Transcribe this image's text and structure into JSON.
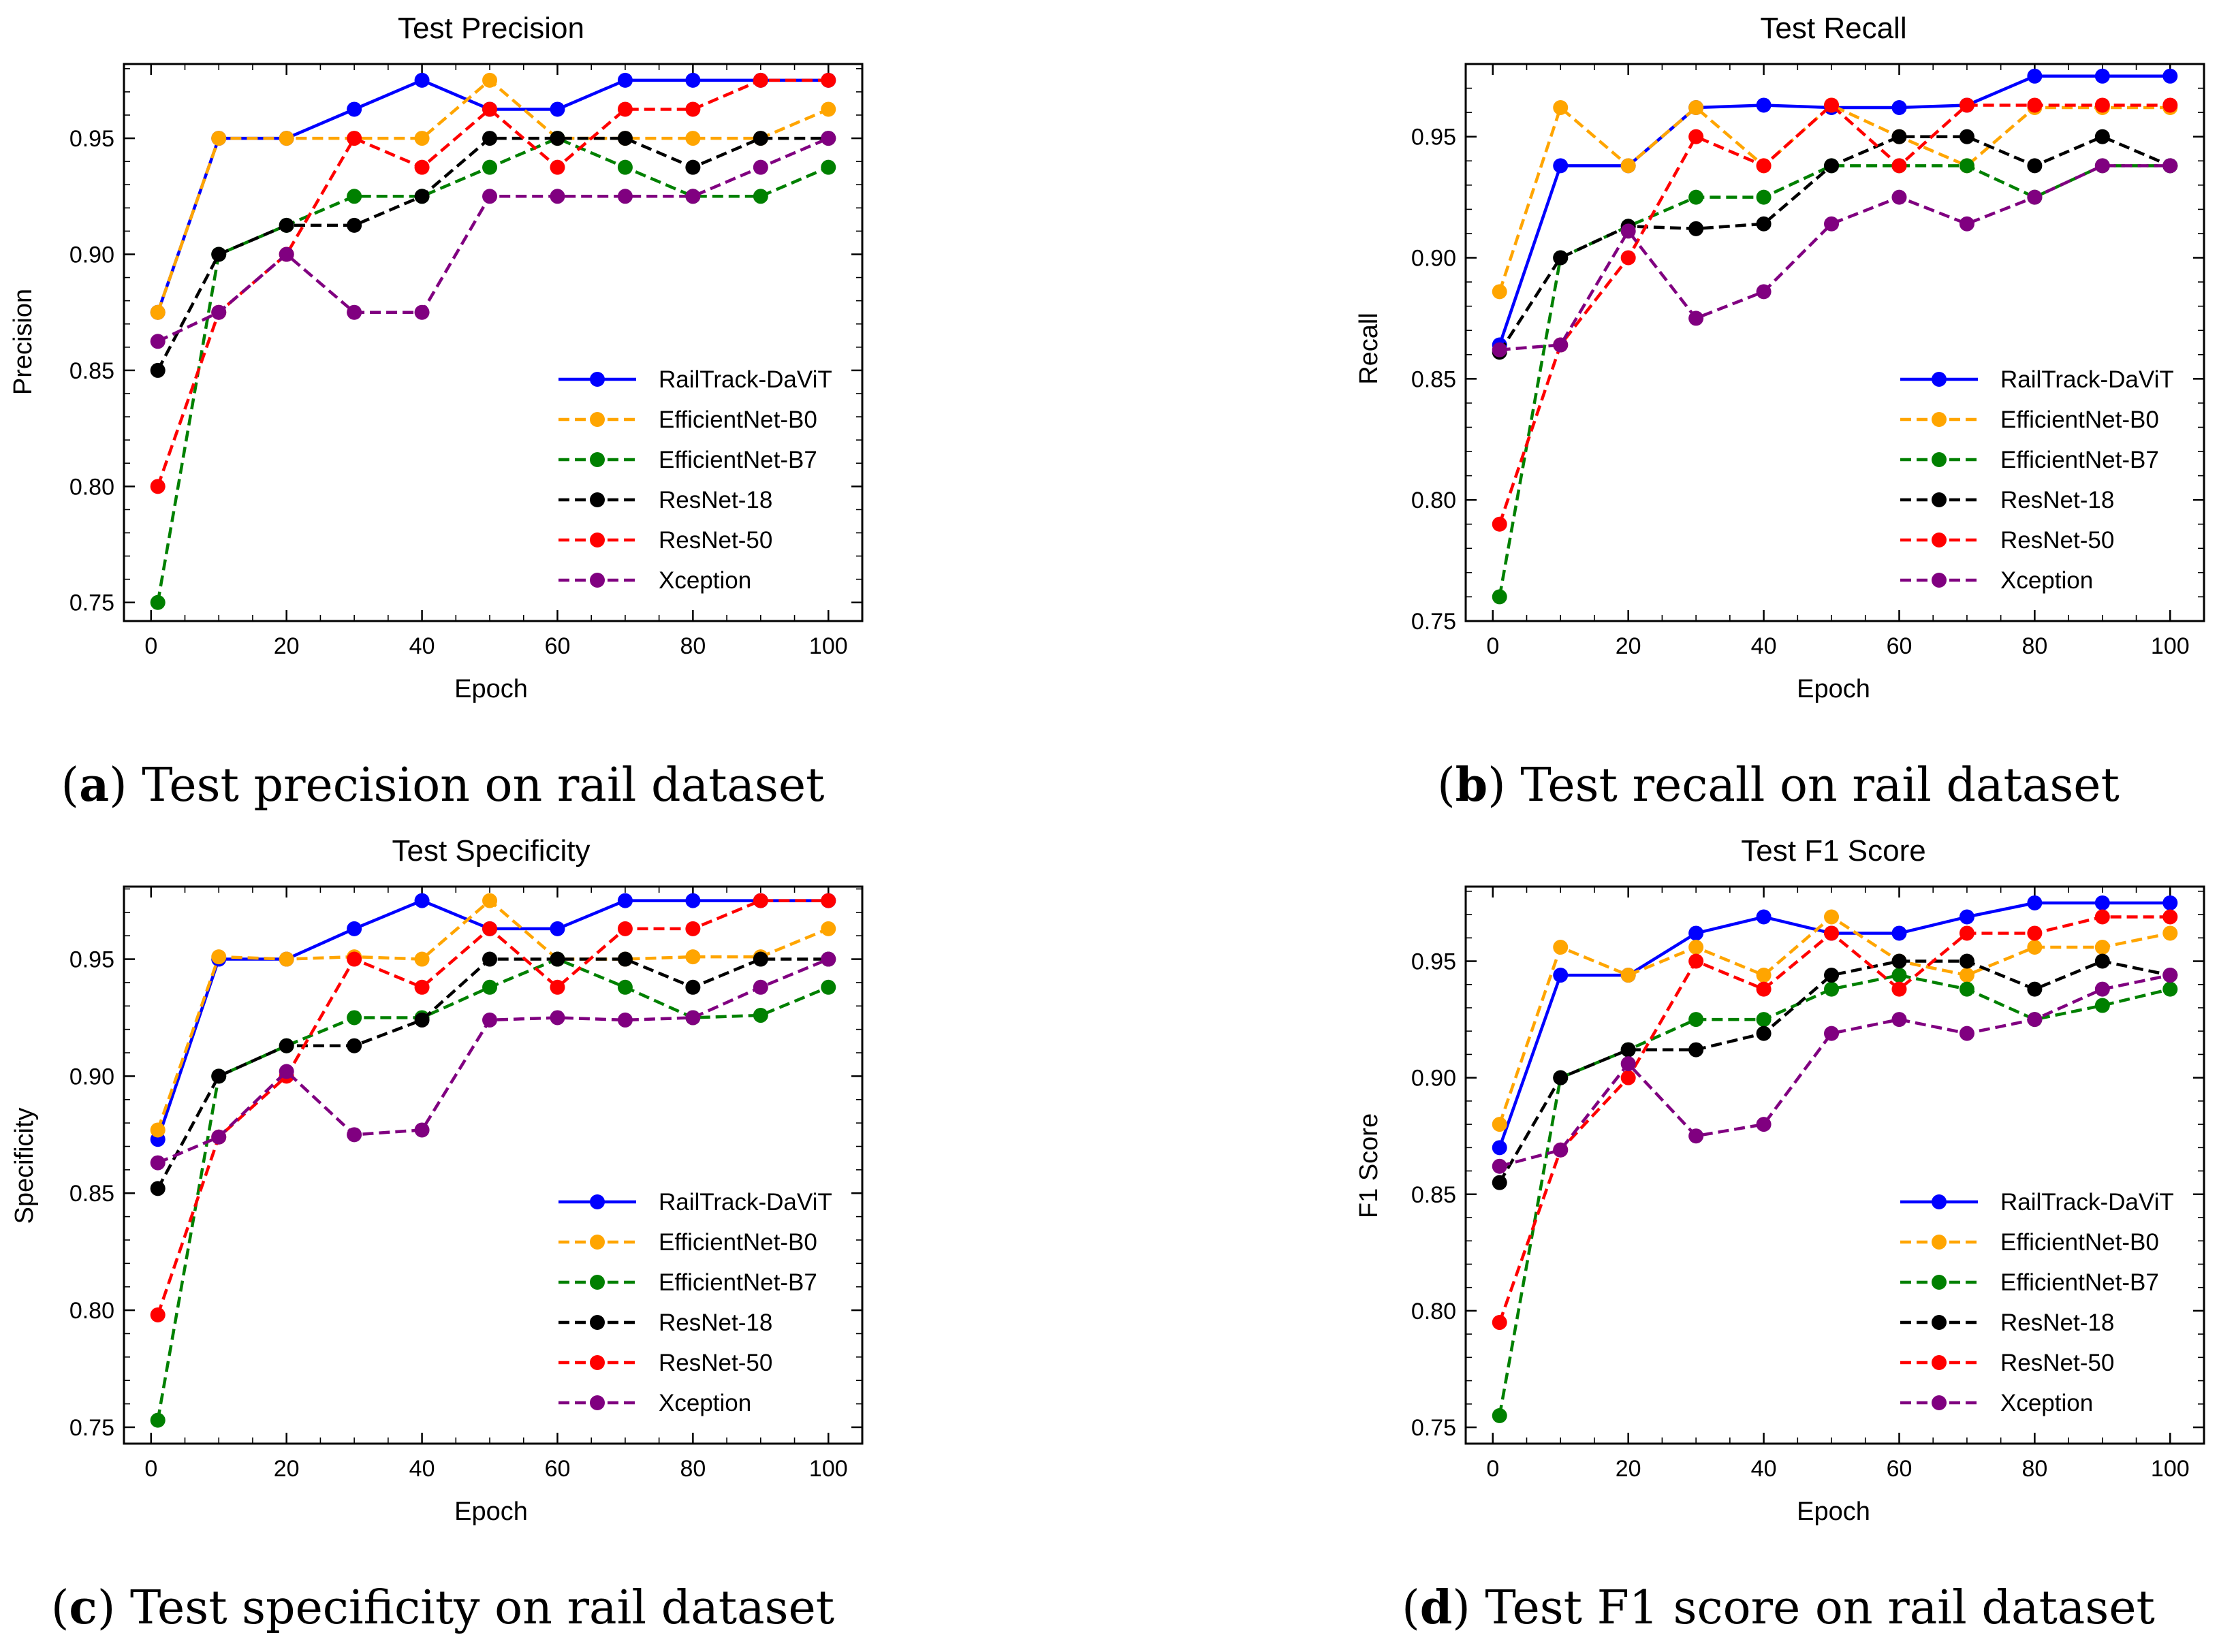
{
  "figure": {
    "captions": [
      {
        "letter": "a",
        "text": "Test precision on rail dataset"
      },
      {
        "letter": "b",
        "text": "Test recall on rail dataset"
      },
      {
        "letter": "c",
        "text": "Test specificity on rail dataset"
      },
      {
        "letter": "d",
        "text": "Test F1 score on rail dataset"
      }
    ]
  },
  "colors": {
    "RailTrack-DaViT": "#0000ff",
    "EfficientNet-B0": "#ffa500",
    "EfficientNet-B7": "#008000",
    "ResNet-18": "#000000",
    "ResNet-50": "#ff0000",
    "Xception": "#800080"
  },
  "chart_data": [
    {
      "type": "line",
      "title": "Test Precision",
      "xlabel": "Epoch",
      "ylabel": "Precision",
      "xlim": [
        -4,
        105
      ],
      "ylim": [
        0.742,
        0.982
      ],
      "xticks": [
        0,
        20,
        40,
        60,
        80,
        100
      ],
      "yticks": [
        0.75,
        0.8,
        0.85,
        0.9,
        0.95
      ],
      "x": [
        1,
        10,
        20,
        30,
        40,
        50,
        60,
        70,
        80,
        90,
        100
      ],
      "legend_position": "center-right",
      "series": [
        {
          "name": "RailTrack-DaViT",
          "style": "solid",
          "values": [
            0.875,
            0.95,
            0.95,
            0.9625,
            0.975,
            0.9625,
            0.9625,
            0.975,
            0.975,
            0.975,
            0.975
          ]
        },
        {
          "name": "EfficientNet-B0",
          "style": "dashed",
          "values": [
            0.875,
            0.95,
            0.95,
            0.95,
            0.95,
            0.975,
            0.95,
            0.95,
            0.95,
            0.95,
            0.9625
          ]
        },
        {
          "name": "EfficientNet-B7",
          "style": "dashed",
          "values": [
            0.75,
            0.9,
            0.9125,
            0.925,
            0.925,
            0.9375,
            0.95,
            0.9375,
            0.925,
            0.925,
            0.9375
          ]
        },
        {
          "name": "ResNet-18",
          "style": "dashed",
          "values": [
            0.85,
            0.9,
            0.9125,
            0.9125,
            0.925,
            0.95,
            0.95,
            0.95,
            0.9375,
            0.95,
            0.95
          ]
        },
        {
          "name": "ResNet-50",
          "style": "dashed",
          "values": [
            0.8,
            0.875,
            0.9,
            0.95,
            0.9375,
            0.9625,
            0.9375,
            0.9625,
            0.9625,
            0.975,
            0.975
          ]
        },
        {
          "name": "Xception",
          "style": "dashed",
          "values": [
            0.8625,
            0.875,
            0.9,
            0.875,
            0.875,
            0.925,
            0.925,
            0.925,
            0.925,
            0.9375,
            0.95
          ]
        }
      ]
    },
    {
      "type": "line",
      "title": "Test Recall",
      "xlabel": "Epoch",
      "ylabel": "Recall",
      "xlim": [
        -4,
        105
      ],
      "ylim": [
        0.75,
        0.98
      ],
      "xticks": [
        0,
        20,
        40,
        60,
        80,
        100
      ],
      "yticks": [
        0.75,
        0.8,
        0.85,
        0.9,
        0.95
      ],
      "x": [
        1,
        10,
        20,
        30,
        40,
        50,
        60,
        70,
        80,
        90,
        100
      ],
      "legend_position": "center-right",
      "series": [
        {
          "name": "RailTrack-DaViT",
          "style": "solid",
          "values": [
            0.864,
            0.938,
            0.938,
            0.962,
            0.963,
            0.962,
            0.962,
            0.963,
            0.975,
            0.975,
            0.975
          ]
        },
        {
          "name": "EfficientNet-B0",
          "style": "dashed",
          "values": [
            0.886,
            0.962,
            0.938,
            0.962,
            0.938,
            0.963,
            0.95,
            0.938,
            0.962,
            0.962,
            0.962
          ]
        },
        {
          "name": "EfficientNet-B7",
          "style": "dashed",
          "values": [
            0.76,
            0.9,
            0.913,
            0.925,
            0.925,
            0.938,
            0.938,
            0.938,
            0.925,
            0.938,
            0.938
          ]
        },
        {
          "name": "ResNet-18",
          "style": "dashed",
          "values": [
            0.861,
            0.9,
            0.913,
            0.912,
            0.914,
            0.938,
            0.95,
            0.95,
            0.938,
            0.95,
            0.938
          ]
        },
        {
          "name": "ResNet-50",
          "style": "dashed",
          "values": [
            0.79,
            0.864,
            0.9,
            0.95,
            0.938,
            0.963,
            0.938,
            0.963,
            0.963,
            0.963,
            0.963
          ]
        },
        {
          "name": "Xception",
          "style": "dashed",
          "values": [
            0.862,
            0.864,
            0.911,
            0.875,
            0.886,
            0.914,
            0.925,
            0.914,
            0.925,
            0.938,
            0.938
          ]
        }
      ]
    },
    {
      "type": "line",
      "title": "Test Specificity",
      "xlabel": "Epoch",
      "ylabel": "Specificity",
      "xlim": [
        -4,
        105
      ],
      "ylim": [
        0.743,
        0.981
      ],
      "xticks": [
        0,
        20,
        40,
        60,
        80,
        100
      ],
      "yticks": [
        0.75,
        0.8,
        0.85,
        0.9,
        0.95
      ],
      "x": [
        1,
        10,
        20,
        30,
        40,
        50,
        60,
        70,
        80,
        90,
        100
      ],
      "legend_position": "center-right",
      "series": [
        {
          "name": "RailTrack-DaViT",
          "style": "solid",
          "values": [
            0.873,
            0.95,
            0.95,
            0.963,
            0.975,
            0.963,
            0.963,
            0.975,
            0.975,
            0.975,
            0.975
          ]
        },
        {
          "name": "EfficientNet-B0",
          "style": "dashed",
          "values": [
            0.877,
            0.951,
            0.95,
            0.951,
            0.95,
            0.975,
            0.95,
            0.95,
            0.951,
            0.951,
            0.963
          ]
        },
        {
          "name": "EfficientNet-B7",
          "style": "dashed",
          "values": [
            0.753,
            0.9,
            0.913,
            0.925,
            0.925,
            0.938,
            0.95,
            0.938,
            0.925,
            0.926,
            0.938
          ]
        },
        {
          "name": "ResNet-18",
          "style": "dashed",
          "values": [
            0.852,
            0.9,
            0.913,
            0.913,
            0.924,
            0.95,
            0.95,
            0.95,
            0.938,
            0.95,
            0.95
          ]
        },
        {
          "name": "ResNet-50",
          "style": "dashed",
          "values": [
            0.798,
            0.874,
            0.9,
            0.95,
            0.938,
            0.963,
            0.938,
            0.963,
            0.963,
            0.975,
            0.975
          ]
        },
        {
          "name": "Xception",
          "style": "dashed",
          "values": [
            0.863,
            0.874,
            0.902,
            0.875,
            0.877,
            0.924,
            0.925,
            0.924,
            0.925,
            0.938,
            0.95
          ]
        }
      ]
    },
    {
      "type": "line",
      "title": "Test F1 Score",
      "xlabel": "Epoch",
      "ylabel": "F1 Score",
      "xlim": [
        -4,
        105
      ],
      "ylim": [
        0.743,
        0.982
      ],
      "xticks": [
        0,
        20,
        40,
        60,
        80,
        100
      ],
      "yticks": [
        0.75,
        0.8,
        0.85,
        0.9,
        0.95
      ],
      "x": [
        1,
        10,
        20,
        30,
        40,
        50,
        60,
        70,
        80,
        90,
        100
      ],
      "legend_position": "center-right",
      "series": [
        {
          "name": "RailTrack-DaViT",
          "style": "solid",
          "values": [
            0.87,
            0.944,
            0.944,
            0.962,
            0.969,
            0.962,
            0.962,
            0.969,
            0.975,
            0.975,
            0.975
          ]
        },
        {
          "name": "EfficientNet-B0",
          "style": "dashed",
          "values": [
            0.88,
            0.956,
            0.944,
            0.956,
            0.944,
            0.969,
            0.95,
            0.944,
            0.956,
            0.956,
            0.962
          ]
        },
        {
          "name": "EfficientNet-B7",
          "style": "dashed",
          "values": [
            0.755,
            0.9,
            0.912,
            0.925,
            0.925,
            0.938,
            0.944,
            0.938,
            0.925,
            0.931,
            0.938
          ]
        },
        {
          "name": "ResNet-18",
          "style": "dashed",
          "values": [
            0.855,
            0.9,
            0.912,
            0.912,
            0.919,
            0.944,
            0.95,
            0.95,
            0.938,
            0.95,
            0.944
          ]
        },
        {
          "name": "ResNet-50",
          "style": "dashed",
          "values": [
            0.795,
            0.869,
            0.9,
            0.95,
            0.938,
            0.962,
            0.938,
            0.962,
            0.962,
            0.969,
            0.969
          ]
        },
        {
          "name": "Xception",
          "style": "dashed",
          "values": [
            0.862,
            0.869,
            0.906,
            0.875,
            0.88,
            0.919,
            0.925,
            0.919,
            0.925,
            0.938,
            0.944
          ]
        }
      ]
    }
  ]
}
